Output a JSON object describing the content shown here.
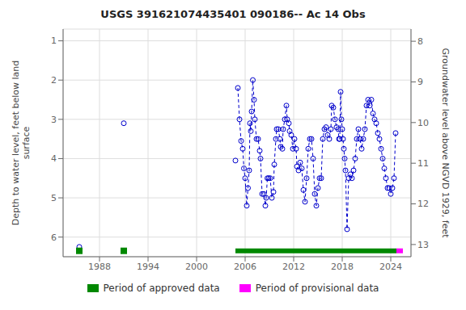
{
  "chart_data": {
    "type": "scatter",
    "title": "USGS 391621074435401 090186-- Ac 14 Obs",
    "y_label": "Depth to water level, feet below land\nsurface",
    "y2_label": "Groundwater level above NGVD 1929, feet",
    "xlim": [
      1983.5,
      2026.5
    ],
    "xticks": [
      1988,
      1994,
      2000,
      2006,
      2012,
      2018,
      2024
    ],
    "ylim": [
      6.5,
      0.7
    ],
    "yticks": [
      1.0,
      2.0,
      3.0,
      4.0,
      5.0,
      6.0
    ],
    "y2lim": [
      13.3,
      7.7
    ],
    "y2ticks": [
      8.0,
      9.0,
      10.0,
      11.0,
      12.0,
      13.0
    ],
    "grid": true,
    "color": "#0000cc",
    "marker": "circle",
    "line_style": "dashed",
    "x": [
      1985.5,
      1991.0,
      2004.8,
      2005.1,
      2005.3,
      2005.5,
      2005.7,
      2005.85,
      2006.0,
      2006.2,
      2006.35,
      2006.5,
      2006.6,
      2006.7,
      2006.8,
      2006.95,
      2007.1,
      2007.2,
      2007.4,
      2007.6,
      2007.8,
      2007.9,
      2008.1,
      2008.3,
      2008.5,
      2008.6,
      2008.75,
      2008.9,
      2009.1,
      2009.3,
      2009.5,
      2009.6,
      2009.8,
      2009.9,
      2010.1,
      2010.3,
      2010.4,
      2010.6,
      2010.7,
      2010.9,
      2011.1,
      2011.2,
      2011.4,
      2011.5,
      2011.7,
      2011.9,
      2012.1,
      2012.3,
      2012.4,
      2012.6,
      2012.8,
      2013.0,
      2013.2,
      2013.4,
      2013.6,
      2013.8,
      2014.0,
      2014.2,
      2014.4,
      2014.6,
      2014.8,
      2015.0,
      2015.2,
      2015.4,
      2015.6,
      2015.8,
      2016.0,
      2016.2,
      2016.4,
      2016.6,
      2016.7,
      2016.9,
      2017.1,
      2017.3,
      2017.5,
      2017.6,
      2017.7,
      2017.8,
      2017.9,
      2018.0,
      2018.1,
      2018.2,
      2018.3,
      2018.4,
      2018.6,
      2018.8,
      2019.0,
      2019.2,
      2019.4,
      2019.6,
      2019.8,
      2020.0,
      2020.2,
      2020.4,
      2020.6,
      2020.8,
      2021.0,
      2021.2,
      2021.4,
      2021.6,
      2021.8,
      2022.0,
      2022.2,
      2022.4,
      2022.6,
      2022.8,
      2023.0,
      2023.2,
      2023.4,
      2023.6,
      2023.8,
      2024.0,
      2024.2,
      2024.4,
      2024.6
    ],
    "values": [
      6.25,
      3.1,
      4.05,
      2.2,
      3.0,
      3.55,
      3.75,
      4.25,
      4.5,
      5.2,
      4.75,
      4.3,
      3.1,
      3.3,
      2.8,
      2.0,
      2.5,
      3.0,
      3.5,
      3.5,
      3.8,
      4.0,
      4.9,
      4.9,
      5.2,
      5.0,
      4.5,
      4.5,
      4.5,
      5.0,
      4.85,
      4.15,
      3.5,
      3.25,
      3.25,
      3.5,
      3.7,
      3.75,
      3.25,
      3.0,
      2.65,
      3.0,
      3.1,
      3.3,
      3.4,
      3.75,
      3.5,
      3.75,
      4.2,
      4.3,
      4.1,
      4.25,
      4.8,
      5.1,
      4.5,
      3.75,
      3.5,
      3.5,
      4.0,
      4.9,
      5.2,
      4.75,
      4.5,
      4.5,
      3.5,
      3.25,
      3.2,
      3.4,
      3.5,
      3.25,
      2.65,
      2.7,
      3.0,
      3.2,
      3.25,
      3.5,
      3.5,
      2.3,
      3.0,
      3.25,
      3.5,
      3.75,
      4.0,
      4.3,
      5.8,
      4.5,
      4.4,
      4.5,
      4.3,
      4.0,
      3.5,
      3.25,
      3.5,
      3.75,
      3.5,
      3.25,
      2.65,
      2.5,
      2.65,
      2.5,
      2.85,
      3.0,
      3.1,
      3.35,
      3.5,
      3.75,
      4.0,
      4.25,
      4.5,
      4.75,
      4.75,
      4.9,
      4.75,
      4.5,
      3.35
    ],
    "periods": [
      {
        "name": "Period of approved data",
        "color": "#008800",
        "start": 2004.8,
        "end": 2024.7,
        "y": 6.35
      },
      {
        "name": "Period of provisional data",
        "color": "#ff00ff",
        "start": 2024.7,
        "end": 2025.5,
        "y": 6.35
      }
    ],
    "period_markers": {
      "x": [
        1985.5,
        1991.0
      ],
      "y": [
        6.35,
        6.35
      ],
      "color": "#008800",
      "marker": "square"
    },
    "legend": "bottom"
  }
}
